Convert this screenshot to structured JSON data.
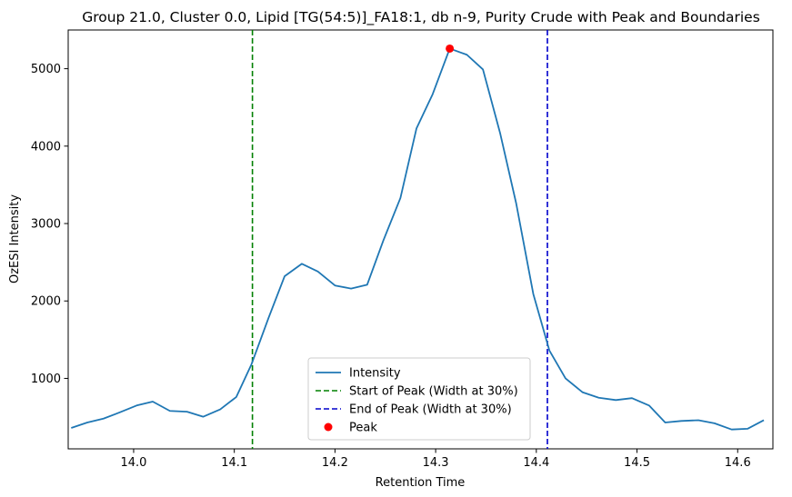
{
  "chart_data": {
    "type": "line",
    "title": "Group 21.0, Cluster 0.0, Lipid [TG(54:5)]_FA18:1, db n-9, Purity Crude with Peak and Boundaries",
    "xlabel": "Retention Time",
    "ylabel": "OzESI Intensity",
    "xlim": [
      13.935,
      14.635
    ],
    "ylim": [
      90,
      5500
    ],
    "x_ticks": [
      14.0,
      14.1,
      14.2,
      14.3,
      14.4,
      14.5,
      14.6
    ],
    "x_tick_labels": [
      "14.0",
      "14.1",
      "14.2",
      "14.3",
      "14.4",
      "14.5",
      "14.6"
    ],
    "y_ticks": [
      1000,
      2000,
      3000,
      4000,
      5000
    ],
    "y_tick_labels": [
      "1000",
      "2000",
      "3000",
      "4000",
      "5000"
    ],
    "grid": false,
    "legend_position": "lower-center",
    "series": [
      {
        "name": "Intensity",
        "color": "#1f77b4",
        "x": [
          13.938,
          13.954,
          13.97,
          13.986,
          14.003,
          14.019,
          14.036,
          14.053,
          14.069,
          14.086,
          14.102,
          14.117,
          14.134,
          14.15,
          14.167,
          14.183,
          14.2,
          14.216,
          14.232,
          14.248,
          14.265,
          14.281,
          14.297,
          14.314,
          14.331,
          14.347,
          14.364,
          14.38,
          14.397,
          14.413,
          14.429,
          14.446,
          14.462,
          14.479,
          14.495,
          14.512,
          14.528,
          14.544,
          14.561,
          14.577,
          14.594,
          14.61,
          14.626
        ],
        "y": [
          360,
          430,
          480,
          560,
          650,
          700,
          580,
          570,
          505,
          600,
          760,
          1180,
          1780,
          2320,
          2480,
          2380,
          2200,
          2160,
          2210,
          2780,
          3330,
          4230,
          4670,
          5260,
          5180,
          4990,
          4170,
          3260,
          2090,
          1360,
          1000,
          820,
          750,
          720,
          745,
          650,
          430,
          450,
          460,
          420,
          340,
          350,
          460
        ]
      }
    ],
    "vlines": [
      {
        "name": "Start of Peak (Width at 30%)",
        "x": 14.118,
        "color": "#008000",
        "style": "dashed"
      },
      {
        "name": "End of Peak (Width at 30%)",
        "x": 14.411,
        "color": "#0000cc",
        "style": "dashed"
      }
    ],
    "points": [
      {
        "name": "Peak",
        "x": 14.314,
        "y": 5260,
        "color": "#ff0000"
      }
    ]
  }
}
